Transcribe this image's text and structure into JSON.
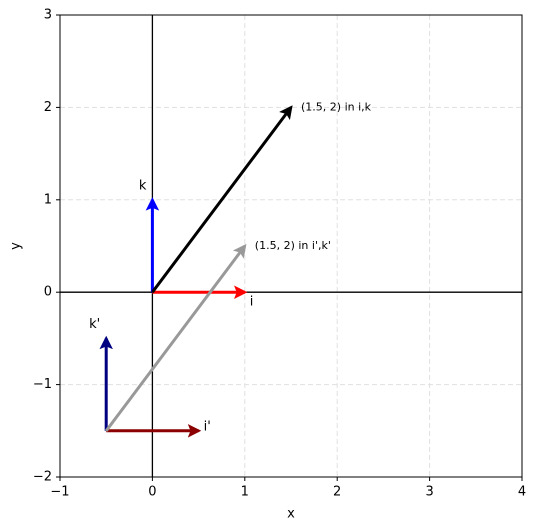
{
  "chart_data": {
    "type": "quiver",
    "x_label": "x",
    "y_label": "y",
    "xlim": [
      -1,
      4
    ],
    "ylim": [
      -2,
      3
    ],
    "xticks": [
      {
        "value": -1,
        "label": "−1"
      },
      0,
      1,
      2,
      3,
      4
    ],
    "yticks": [
      {
        "value": -2,
        "label": "−2"
      },
      {
        "value": -1,
        "label": "−1"
      },
      0,
      1,
      2,
      3
    ],
    "grid": true,
    "vectors": [
      {
        "label": "i",
        "color": "#ff0000",
        "x0": 0,
        "y0": 0,
        "dx": 1,
        "dy": 0
      },
      {
        "label": "k",
        "color": "#0000ff",
        "x0": 0,
        "y0": 0,
        "dx": 0,
        "dy": 1
      },
      {
        "label": "(1.5, 2) in i,k",
        "color": "#000000",
        "x0": 0,
        "y0": 0,
        "dx": 1.5,
        "dy": 2
      },
      {
        "label": "i'",
        "color": "#8b0000",
        "x0": -0.5,
        "y0": -1.5,
        "dx": 1,
        "dy": 0
      },
      {
        "label": "k'",
        "color": "#000080",
        "x0": -0.5,
        "y0": -1.5,
        "dx": 0,
        "dy": 1
      },
      {
        "label": "(1.5, 2) in i',k'",
        "color": "#999999",
        "x0": -0.5,
        "y0": -1.5,
        "dx": 1.5,
        "dy": 2
      }
    ]
  }
}
